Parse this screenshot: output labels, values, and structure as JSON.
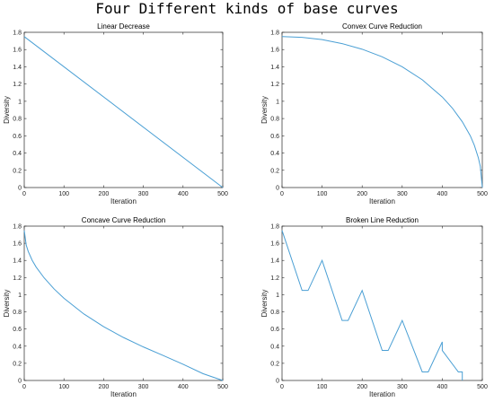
{
  "figure": {
    "title": "Four Different kinds of base curves"
  },
  "colors": {
    "line": "#4a9fd4",
    "axis": "#262626"
  },
  "chart_data": [
    {
      "type": "line",
      "title": "Linear Decrease",
      "xlabel": "Iteration",
      "ylabel": "Diversity",
      "xlim": [
        0,
        500
      ],
      "ylim": [
        0,
        1.8
      ],
      "xticks": [
        0,
        100,
        200,
        300,
        400,
        500
      ],
      "yticks": [
        0,
        0.2,
        0.4,
        0.6,
        0.8,
        1,
        1.2,
        1.4,
        1.6,
        1.8
      ],
      "grid": false,
      "series": [
        {
          "x": [
            0,
            500
          ],
          "y": [
            1.75,
            0
          ]
        }
      ]
    },
    {
      "type": "line",
      "title": "Convex Curve Reduction",
      "xlabel": "Iteration",
      "ylabel": "Diversity",
      "xlim": [
        0,
        500
      ],
      "ylim": [
        0,
        1.8
      ],
      "xticks": [
        0,
        100,
        200,
        300,
        400,
        500
      ],
      "yticks": [
        0,
        0.2,
        0.4,
        0.6,
        0.8,
        1,
        1.2,
        1.4,
        1.6,
        1.8
      ],
      "grid": false,
      "series": [
        {
          "x": [
            0,
            50,
            100,
            150,
            200,
            250,
            300,
            350,
            400,
            425,
            450,
            470,
            480,
            490,
            495,
            500
          ],
          "y": [
            1.75,
            1.741,
            1.715,
            1.669,
            1.604,
            1.516,
            1.4,
            1.25,
            1.05,
            0.922,
            0.763,
            0.6,
            0.491,
            0.346,
            0.245,
            0
          ]
        }
      ]
    },
    {
      "type": "line",
      "title": "Concave Curve Reduction",
      "xlabel": "Iteration",
      "ylabel": "Diversity",
      "xlim": [
        0,
        500
      ],
      "ylim": [
        0,
        1.8
      ],
      "xticks": [
        0,
        100,
        200,
        300,
        400,
        500
      ],
      "yticks": [
        0,
        0.2,
        0.4,
        0.6,
        0.8,
        1,
        1.2,
        1.4,
        1.6,
        1.8
      ],
      "grid": false,
      "series": [
        {
          "x": [
            0,
            5,
            10,
            20,
            30,
            50,
            75,
            100,
            150,
            200,
            250,
            300,
            350,
            400,
            450,
            500
          ],
          "y": [
            1.75,
            1.578,
            1.505,
            1.401,
            1.322,
            1.197,
            1.068,
            0.959,
            0.776,
            0.627,
            0.501,
            0.391,
            0.291,
            0.189,
            0.08,
            0
          ]
        }
      ]
    },
    {
      "type": "line",
      "title": "Broken Line Reduction",
      "xlabel": "Iteration",
      "ylabel": "Diversity",
      "xlim": [
        0,
        500
      ],
      "ylim": [
        0,
        1.8
      ],
      "xticks": [
        0,
        100,
        200,
        300,
        400,
        500
      ],
      "yticks": [
        0,
        0.2,
        0.4,
        0.6,
        0.8,
        1,
        1.2,
        1.4,
        1.6,
        1.8
      ],
      "grid": false,
      "series": [
        {
          "x": [
            0,
            50,
            65,
            100,
            150,
            165,
            200,
            250,
            265,
            300,
            350,
            365,
            400,
            400,
            440,
            450,
            450
          ],
          "y": [
            1.75,
            1.05,
            1.05,
            1.4,
            0.7,
            0.7,
            1.05,
            0.35,
            0.35,
            0.7,
            0.1,
            0.1,
            0.45,
            0.35,
            0.1,
            0.1,
            0
          ]
        }
      ]
    }
  ]
}
